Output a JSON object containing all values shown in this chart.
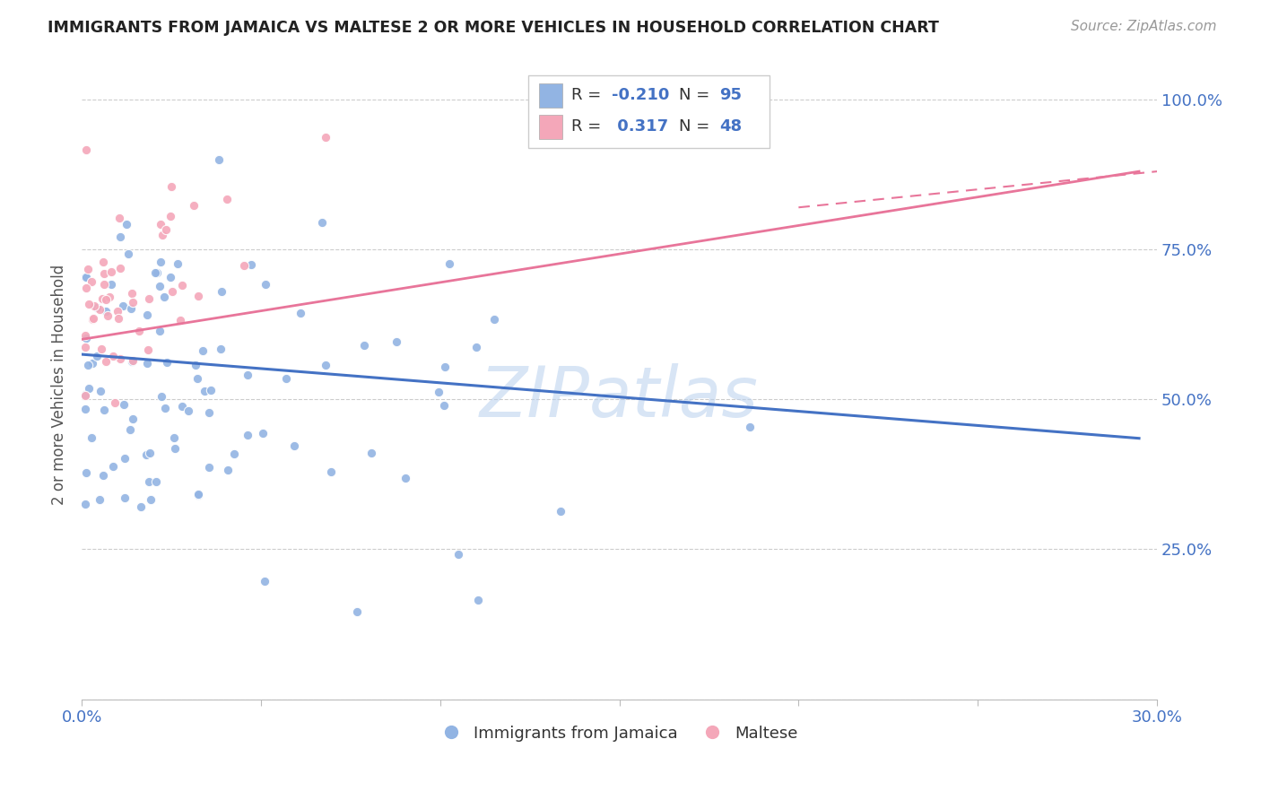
{
  "title": "IMMIGRANTS FROM JAMAICA VS MALTESE 2 OR MORE VEHICLES IN HOUSEHOLD CORRELATION CHART",
  "source": "Source: ZipAtlas.com",
  "ylabel": "2 or more Vehicles in Household",
  "x_min": 0.0,
  "x_max": 0.3,
  "y_min": 0.0,
  "y_max": 1.05,
  "x_tick_positions": [
    0.0,
    0.05,
    0.1,
    0.15,
    0.2,
    0.25,
    0.3
  ],
  "x_tick_labels": [
    "0.0%",
    "",
    "",
    "",
    "",
    "",
    "30.0%"
  ],
  "y_tick_positions": [
    0.0,
    0.25,
    0.5,
    0.75,
    1.0
  ],
  "y_tick_labels_right": [
    "",
    "25.0%",
    "50.0%",
    "75.0%",
    "100.0%"
  ],
  "legend_label1": "Immigrants from Jamaica",
  "legend_label2": "Maltese",
  "r1": -0.21,
  "n1": 95,
  "r2": 0.317,
  "n2": 48,
  "color1": "#92b4e3",
  "color2": "#f4a7b9",
  "trendline1_color": "#4472c4",
  "trendline2_color": "#e8759a",
  "trendline1_x": [
    0.0,
    0.295
  ],
  "trendline1_y": [
    0.575,
    0.435
  ],
  "trendline2_x": [
    0.0,
    0.295
  ],
  "trendline2_y": [
    0.6,
    0.88
  ],
  "watermark_text": "ZIPatlas",
  "seed1": 12,
  "seed2": 77
}
